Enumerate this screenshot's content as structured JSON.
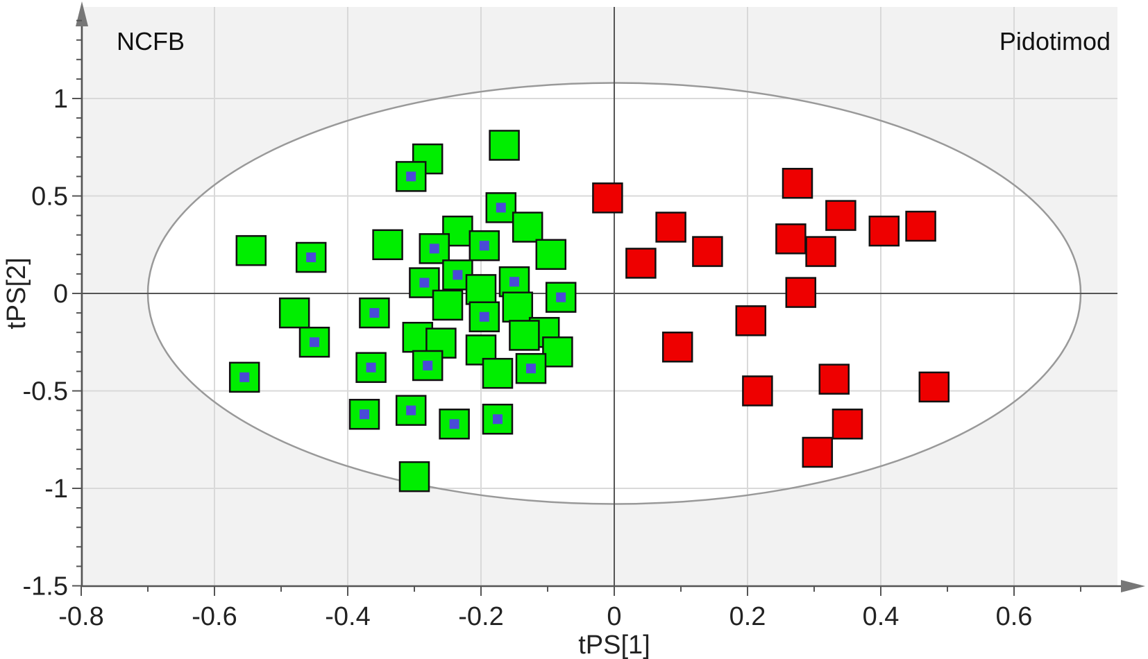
{
  "chart_data": {
    "type": "scatter",
    "xlabel": "tPS[1]",
    "ylabel": "tPS[2]",
    "xlim": [
      -0.8,
      0.8
    ],
    "ylim": [
      -1.5,
      1.5
    ],
    "x_ticks": [
      -0.8,
      -0.6,
      -0.4,
      -0.2,
      0,
      0.2,
      0.4,
      0.6
    ],
    "y_ticks": [
      -1.5,
      -1,
      -0.5,
      0,
      0.5,
      1
    ],
    "x_tick_labels": [
      "-0.8",
      "-0.6",
      "-0.4",
      "-0.2",
      "0",
      "0.2",
      "0.4",
      "0.6"
    ],
    "y_tick_labels": [
      "-1.5",
      "-1",
      "-0.5",
      "0",
      "0.5",
      "1"
    ],
    "grid": true,
    "corner_labels": {
      "left": "NCFB",
      "right": "Pidotimod"
    },
    "ellipse": {
      "cx": 0,
      "cy": 0,
      "rx": 0.7,
      "ry": 1.08,
      "color": "#999999"
    },
    "colors": {
      "ncfb": "#00ee00",
      "pidotimod": "#ee0000",
      "marker_dot": "#4a4ad8",
      "outer_bg": "#f2f2f2",
      "grid": "#d9d9d9"
    },
    "series": [
      {
        "group": "ncfb",
        "color": "#00ee00",
        "points": [
          {
            "x": -0.165,
            "y": 0.76,
            "dot": false
          },
          {
            "x": -0.28,
            "y": 0.69,
            "dot": false
          },
          {
            "x": -0.305,
            "y": 0.6,
            "dot": true
          },
          {
            "x": -0.17,
            "y": 0.44,
            "dot": true
          },
          {
            "x": -0.13,
            "y": 0.34,
            "dot": false
          },
          {
            "x": -0.235,
            "y": 0.32,
            "dot": false
          },
          {
            "x": -0.34,
            "y": 0.25,
            "dot": false
          },
          {
            "x": -0.545,
            "y": 0.22,
            "dot": false
          },
          {
            "x": -0.27,
            "y": 0.23,
            "dot": true
          },
          {
            "x": -0.195,
            "y": 0.245,
            "dot": true
          },
          {
            "x": -0.095,
            "y": 0.2,
            "dot": false
          },
          {
            "x": -0.455,
            "y": 0.185,
            "dot": true
          },
          {
            "x": -0.235,
            "y": 0.095,
            "dot": true
          },
          {
            "x": -0.285,
            "y": 0.055,
            "dot": true
          },
          {
            "x": -0.2,
            "y": 0.02,
            "dot": false
          },
          {
            "x": -0.15,
            "y": 0.06,
            "dot": true
          },
          {
            "x": -0.08,
            "y": -0.02,
            "dot": true
          },
          {
            "x": -0.145,
            "y": -0.07,
            "dot": false
          },
          {
            "x": -0.25,
            "y": -0.06,
            "dot": false
          },
          {
            "x": -0.195,
            "y": -0.12,
            "dot": true
          },
          {
            "x": -0.48,
            "y": -0.1,
            "dot": false
          },
          {
            "x": -0.36,
            "y": -0.1,
            "dot": true
          },
          {
            "x": -0.105,
            "y": -0.2,
            "dot": false
          },
          {
            "x": -0.135,
            "y": -0.215,
            "dot": false
          },
          {
            "x": -0.295,
            "y": -0.225,
            "dot": false
          },
          {
            "x": -0.26,
            "y": -0.255,
            "dot": false
          },
          {
            "x": -0.45,
            "y": -0.25,
            "dot": true
          },
          {
            "x": -0.2,
            "y": -0.29,
            "dot": false
          },
          {
            "x": -0.085,
            "y": -0.3,
            "dot": false
          },
          {
            "x": -0.28,
            "y": -0.37,
            "dot": true
          },
          {
            "x": -0.365,
            "y": -0.38,
            "dot": true
          },
          {
            "x": -0.125,
            "y": -0.385,
            "dot": true
          },
          {
            "x": -0.175,
            "y": -0.41,
            "dot": false
          },
          {
            "x": -0.555,
            "y": -0.43,
            "dot": true
          },
          {
            "x": -0.305,
            "y": -0.6,
            "dot": true
          },
          {
            "x": -0.375,
            "y": -0.62,
            "dot": true
          },
          {
            "x": -0.24,
            "y": -0.67,
            "dot": true
          },
          {
            "x": -0.175,
            "y": -0.645,
            "dot": true
          },
          {
            "x": -0.3,
            "y": -0.94,
            "dot": false
          }
        ]
      },
      {
        "group": "pidotimod",
        "color": "#ee0000",
        "points": [
          {
            "x": -0.01,
            "y": 0.49
          },
          {
            "x": 0.275,
            "y": 0.565
          },
          {
            "x": 0.34,
            "y": 0.4
          },
          {
            "x": 0.46,
            "y": 0.345
          },
          {
            "x": 0.405,
            "y": 0.32
          },
          {
            "x": 0.085,
            "y": 0.34
          },
          {
            "x": 0.265,
            "y": 0.28
          },
          {
            "x": 0.31,
            "y": 0.215
          },
          {
            "x": 0.14,
            "y": 0.215
          },
          {
            "x": 0.04,
            "y": 0.155
          },
          {
            "x": 0.28,
            "y": 0.005
          },
          {
            "x": 0.205,
            "y": -0.14
          },
          {
            "x": 0.095,
            "y": -0.275
          },
          {
            "x": 0.215,
            "y": -0.5
          },
          {
            "x": 0.33,
            "y": -0.44
          },
          {
            "x": 0.48,
            "y": -0.48
          },
          {
            "x": 0.35,
            "y": -0.67
          },
          {
            "x": 0.305,
            "y": -0.815
          }
        ]
      }
    ]
  }
}
